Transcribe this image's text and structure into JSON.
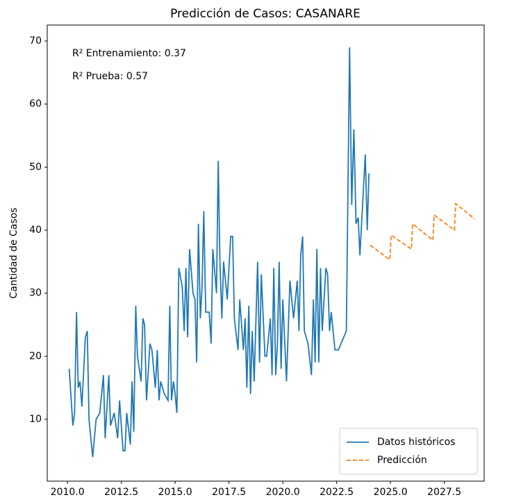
{
  "chart_data": {
    "type": "line",
    "title": "Predicción de Casos: CASANARE",
    "ylabel": "Cantidad de Casos",
    "annotations": [
      "R² Entrenamiento: 0.37",
      "R² Prueba: 0.57"
    ],
    "legend": "lower right",
    "xlim": [
      2009.06,
      2029.35
    ],
    "ylim": [
      0.18,
      72.54
    ],
    "xticks": [
      {
        "value": 2010,
        "label": "2010.0"
      },
      {
        "value": 2012.5,
        "label": "2012.5"
      },
      {
        "value": 2015,
        "label": "2015.0"
      },
      {
        "value": 2017.5,
        "label": "2017.5"
      },
      {
        "value": 2020,
        "label": "2020.0"
      },
      {
        "value": 2022.5,
        "label": "2022.5"
      },
      {
        "value": 2025,
        "label": "2025.0"
      },
      {
        "value": 2027.5,
        "label": "2027.5"
      }
    ],
    "yticks": [
      10,
      20,
      30,
      40,
      50,
      60,
      70
    ],
    "series": [
      {
        "name": "Datos históricos",
        "color": "#1f77b4",
        "linestyle": "solid",
        "x": [
          2010.08,
          2010.25,
          2010.33,
          2010.42,
          2010.5,
          2010.58,
          2010.67,
          2010.83,
          2010.92,
          2011.0,
          2011.17,
          2011.33,
          2011.5,
          2011.67,
          2011.75,
          2011.92,
          2012.0,
          2012.17,
          2012.33,
          2012.42,
          2012.58,
          2012.67,
          2012.75,
          2012.92,
          2013.0,
          2013.08,
          2013.17,
          2013.25,
          2013.42,
          2013.5,
          2013.58,
          2013.67,
          2013.83,
          2013.92,
          2014.08,
          2014.17,
          2014.25,
          2014.33,
          2014.5,
          2014.67,
          2014.75,
          2014.83,
          2014.92,
          2015.0,
          2015.08,
          2015.17,
          2015.33,
          2015.42,
          2015.5,
          2015.58,
          2015.67,
          2015.83,
          2015.92,
          2016.0,
          2016.08,
          2016.17,
          2016.25,
          2016.33,
          2016.42,
          2016.58,
          2016.67,
          2016.75,
          2016.92,
          2017.0,
          2017.08,
          2017.17,
          2017.25,
          2017.42,
          2017.58,
          2017.67,
          2017.75,
          2017.92,
          2018.0,
          2018.17,
          2018.25,
          2018.33,
          2018.42,
          2018.5,
          2018.58,
          2018.67,
          2018.83,
          2018.92,
          2019.0,
          2019.17,
          2019.25,
          2019.42,
          2019.5,
          2019.58,
          2019.67,
          2019.75,
          2019.83,
          2019.92,
          2020.0,
          2020.17,
          2020.33,
          2020.5,
          2020.67,
          2020.75,
          2020.83,
          2020.92,
          2021.0,
          2021.17,
          2021.33,
          2021.42,
          2021.5,
          2021.58,
          2021.67,
          2021.75,
          2021.83,
          2022.0,
          2022.08,
          2022.17,
          2022.25,
          2022.42,
          2022.58,
          2022.95,
          2023.1,
          2023.2,
          2023.3,
          2023.4,
          2023.5,
          2023.58,
          2023.83,
          2023.92,
          2024.0
        ],
        "values": [
          18,
          9,
          11,
          27,
          15,
          16,
          12,
          23,
          24,
          10,
          4,
          10,
          11,
          17,
          7,
          17,
          9,
          11,
          7,
          13,
          5,
          5,
          11,
          6,
          16,
          8,
          28,
          20,
          16,
          26,
          25,
          13,
          22,
          21,
          15,
          21,
          13,
          16,
          14,
          13,
          28,
          13,
          16,
          14,
          11,
          34,
          31,
          24,
          34,
          23,
          37,
          30,
          29,
          19,
          41,
          26,
          31,
          43,
          27,
          27,
          22,
          37,
          30,
          51,
          35,
          26,
          35,
          29,
          39,
          39,
          26,
          21,
          29,
          21,
          26,
          15,
          28,
          14,
          24,
          16,
          35,
          19,
          33,
          20,
          20,
          26,
          17,
          34,
          17,
          22,
          35,
          18,
          29,
          16,
          32,
          26,
          32,
          24,
          36,
          39,
          24,
          22,
          17,
          29,
          19,
          37,
          19,
          34,
          24,
          34,
          33,
          24,
          27,
          21,
          21,
          24,
          69,
          44,
          56,
          41,
          42,
          36,
          52,
          40,
          49
        ]
      },
      {
        "name": "Predicción",
        "color": "#ff7f0e",
        "linestyle": "dashed",
        "x": [
          2024.06,
          2024.97,
          2025.03,
          2025.97,
          2026.03,
          2026.97,
          2027.03,
          2027.97,
          2028.03,
          2028.9
        ],
        "values": [
          37.6,
          35.3,
          39.2,
          37.0,
          41.0,
          38.4,
          42.4,
          40.0,
          44.2,
          41.8
        ]
      }
    ]
  }
}
